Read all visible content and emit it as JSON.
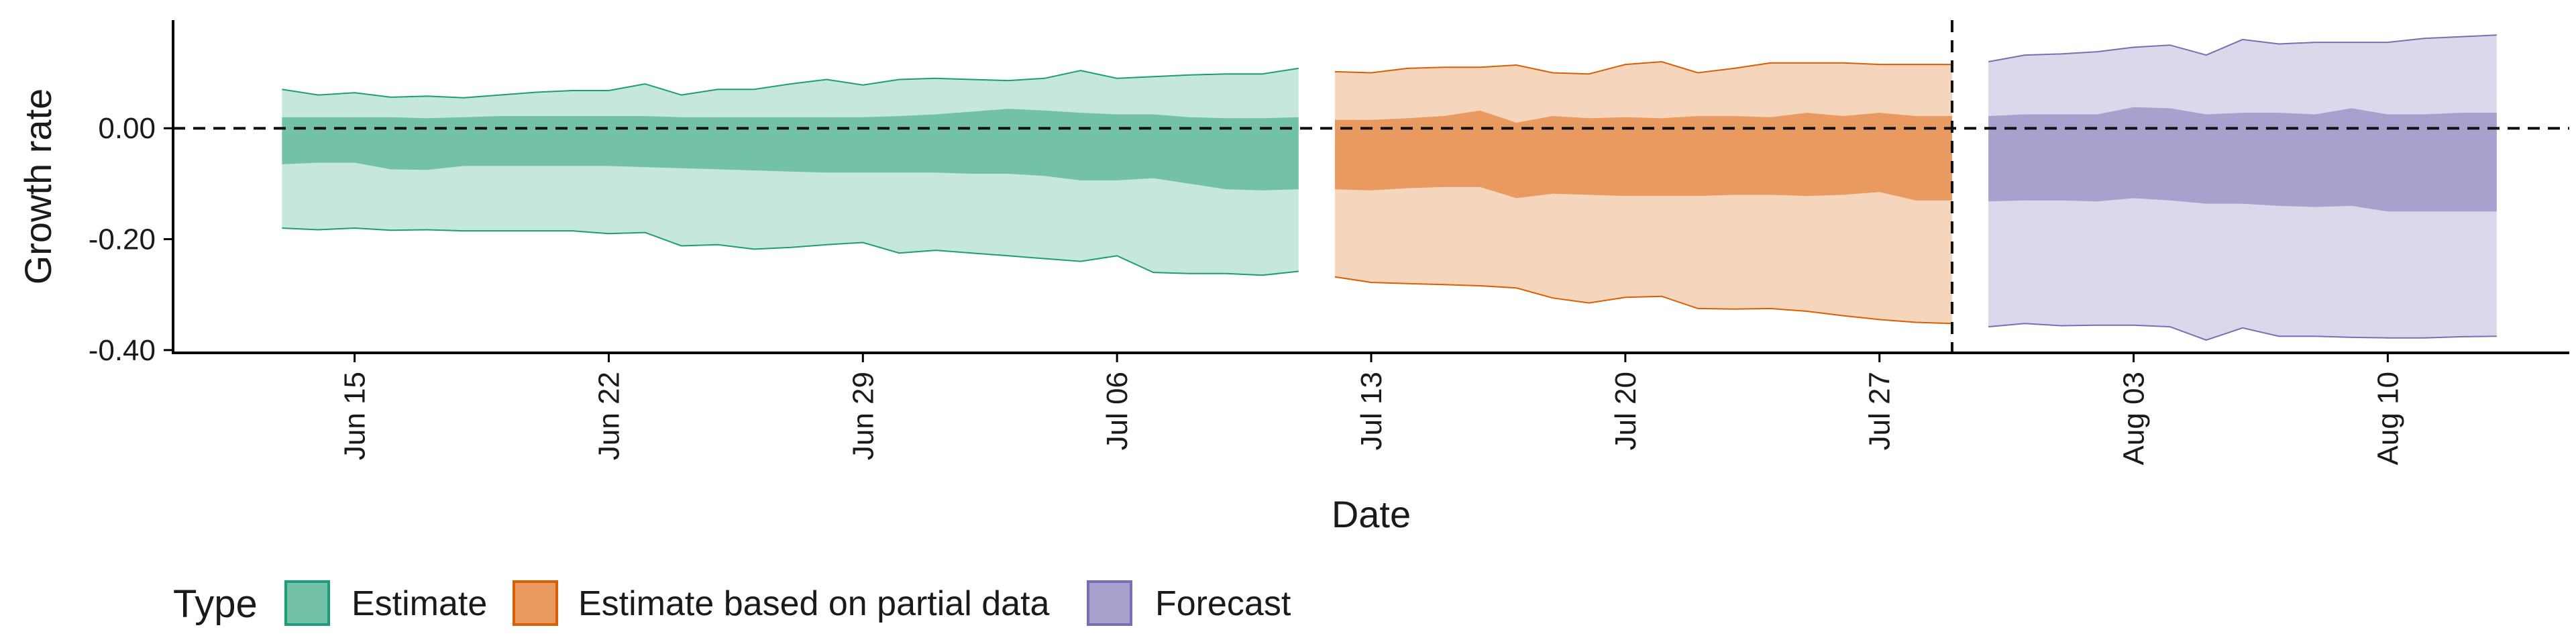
{
  "chart_data": {
    "type": "area",
    "xlabel": "Date",
    "ylabel": "Growth rate",
    "x_domain": [
      "2020-06-10",
      "2020-08-15"
    ],
    "ylim": [
      -0.405,
      0.195
    ],
    "y_ticks": [
      0.0,
      -0.2,
      -0.4
    ],
    "y_tick_labels": [
      "0.00",
      "-0.20",
      "-0.40"
    ],
    "x_ticks": [
      "2020-06-15",
      "2020-06-22",
      "2020-06-29",
      "2020-07-06",
      "2020-07-13",
      "2020-07-20",
      "2020-07-27",
      "2020-08-03",
      "2020-08-10"
    ],
    "x_tick_labels": [
      "Jun 15",
      "Jun 22",
      "Jun 29",
      "Jul 06",
      "Jul 13",
      "Jul 20",
      "Jul 27",
      "Aug 03",
      "Aug 10"
    ],
    "hline": 0.0,
    "vline": "2020-07-29",
    "legend": {
      "title": "Type",
      "position": "bottom-left"
    },
    "series": [
      {
        "name": "Estimate",
        "fill_dark": "#73c2a8",
        "fill_light": "#c5e7dc",
        "stroke": "#1b9e77",
        "x": [
          "2020-06-13",
          "2020-06-14",
          "2020-06-15",
          "2020-06-16",
          "2020-06-17",
          "2020-06-18",
          "2020-06-19",
          "2020-06-20",
          "2020-06-21",
          "2020-06-22",
          "2020-06-23",
          "2020-06-24",
          "2020-06-25",
          "2020-06-26",
          "2020-06-27",
          "2020-06-28",
          "2020-06-29",
          "2020-06-30",
          "2020-07-01",
          "2020-07-02",
          "2020-07-03",
          "2020-07-04",
          "2020-07-05",
          "2020-07-06",
          "2020-07-07",
          "2020-07-08",
          "2020-07-09",
          "2020-07-10",
          "2020-07-11"
        ],
        "upper90": [
          0.07,
          0.06,
          0.064,
          0.056,
          0.058,
          0.055,
          0.06,
          0.065,
          0.068,
          0.068,
          0.08,
          0.06,
          0.07,
          0.07,
          0.08,
          0.088,
          0.078,
          0.088,
          0.09,
          0.088,
          0.086,
          0.09,
          0.104,
          0.09,
          0.093,
          0.096,
          0.098,
          0.098,
          0.108
        ],
        "upper50": [
          0.02,
          0.02,
          0.02,
          0.02,
          0.018,
          0.02,
          0.022,
          0.022,
          0.022,
          0.022,
          0.022,
          0.02,
          0.02,
          0.02,
          0.02,
          0.02,
          0.02,
          0.022,
          0.025,
          0.03,
          0.035,
          0.032,
          0.028,
          0.025,
          0.025,
          0.02,
          0.018,
          0.018,
          0.02
        ],
        "lower50": [
          -0.065,
          -0.062,
          -0.062,
          -0.074,
          -0.075,
          -0.068,
          -0.068,
          -0.068,
          -0.068,
          -0.068,
          -0.07,
          -0.072,
          -0.074,
          -0.076,
          -0.078,
          -0.08,
          -0.08,
          -0.08,
          -0.08,
          -0.082,
          -0.082,
          -0.086,
          -0.094,
          -0.094,
          -0.09,
          -0.1,
          -0.11,
          -0.112,
          -0.11
        ],
        "lower90": [
          -0.18,
          -0.183,
          -0.18,
          -0.184,
          -0.183,
          -0.185,
          -0.185,
          -0.185,
          -0.185,
          -0.19,
          -0.188,
          -0.212,
          -0.21,
          -0.218,
          -0.215,
          -0.21,
          -0.206,
          -0.225,
          -0.22,
          -0.225,
          -0.23,
          -0.235,
          -0.24,
          -0.23,
          -0.26,
          -0.262,
          -0.262,
          -0.265,
          -0.258
        ]
      },
      {
        "name": "Estimate based on partial data",
        "fill_dark": "#e89a60",
        "fill_light": "#f5d5bc",
        "stroke": "#d95f02",
        "x": [
          "2020-07-12",
          "2020-07-13",
          "2020-07-14",
          "2020-07-15",
          "2020-07-16",
          "2020-07-17",
          "2020-07-18",
          "2020-07-19",
          "2020-07-20",
          "2020-07-21",
          "2020-07-22",
          "2020-07-23",
          "2020-07-24",
          "2020-07-25",
          "2020-07-26",
          "2020-07-27",
          "2020-07-28",
          "2020-07-29"
        ],
        "upper90": [
          0.102,
          0.1,
          0.108,
          0.11,
          0.11,
          0.114,
          0.1,
          0.098,
          0.115,
          0.12,
          0.1,
          0.108,
          0.118,
          0.118,
          0.118,
          0.115,
          0.115,
          0.115
        ],
        "upper50": [
          0.015,
          0.015,
          0.018,
          0.022,
          0.032,
          0.01,
          0.022,
          0.018,
          0.02,
          0.018,
          0.022,
          0.022,
          0.02,
          0.028,
          0.022,
          0.028,
          0.022,
          0.022
        ],
        "lower50": [
          -0.11,
          -0.112,
          -0.108,
          -0.106,
          -0.106,
          -0.126,
          -0.118,
          -0.12,
          -0.122,
          -0.122,
          -0.122,
          -0.12,
          -0.12,
          -0.122,
          -0.12,
          -0.115,
          -0.13,
          -0.13
        ],
        "lower90": [
          -0.268,
          -0.278,
          -0.28,
          -0.282,
          -0.284,
          -0.288,
          -0.306,
          -0.315,
          -0.305,
          -0.303,
          -0.325,
          -0.326,
          -0.325,
          -0.33,
          -0.338,
          -0.345,
          -0.35,
          -0.352
        ]
      },
      {
        "name": "Forecast",
        "fill_dark": "#a6a1cd",
        "fill_light": "#dad8ea",
        "stroke": "#7570b3",
        "x": [
          "2020-07-30",
          "2020-07-31",
          "2020-08-01",
          "2020-08-02",
          "2020-08-03",
          "2020-08-04",
          "2020-08-05",
          "2020-08-06",
          "2020-08-07",
          "2020-08-08",
          "2020-08-09",
          "2020-08-10",
          "2020-08-11",
          "2020-08-12",
          "2020-08-13"
        ],
        "upper90": [
          0.12,
          0.132,
          0.134,
          0.138,
          0.146,
          0.15,
          0.132,
          0.16,
          0.152,
          0.155,
          0.155,
          0.155,
          0.162,
          0.165,
          0.168
        ],
        "upper50": [
          0.022,
          0.025,
          0.025,
          0.025,
          0.038,
          0.036,
          0.025,
          0.028,
          0.028,
          0.025,
          0.036,
          0.025,
          0.025,
          0.028,
          0.028
        ],
        "lower50": [
          -0.132,
          -0.13,
          -0.13,
          -0.132,
          -0.126,
          -0.13,
          -0.136,
          -0.136,
          -0.14,
          -0.142,
          -0.14,
          -0.15,
          -0.15,
          -0.15,
          -0.15
        ],
        "lower90": [
          -0.358,
          -0.352,
          -0.356,
          -0.355,
          -0.355,
          -0.358,
          -0.382,
          -0.36,
          -0.375,
          -0.375,
          -0.377,
          -0.378,
          -0.378,
          -0.376,
          -0.375
        ]
      }
    ]
  }
}
